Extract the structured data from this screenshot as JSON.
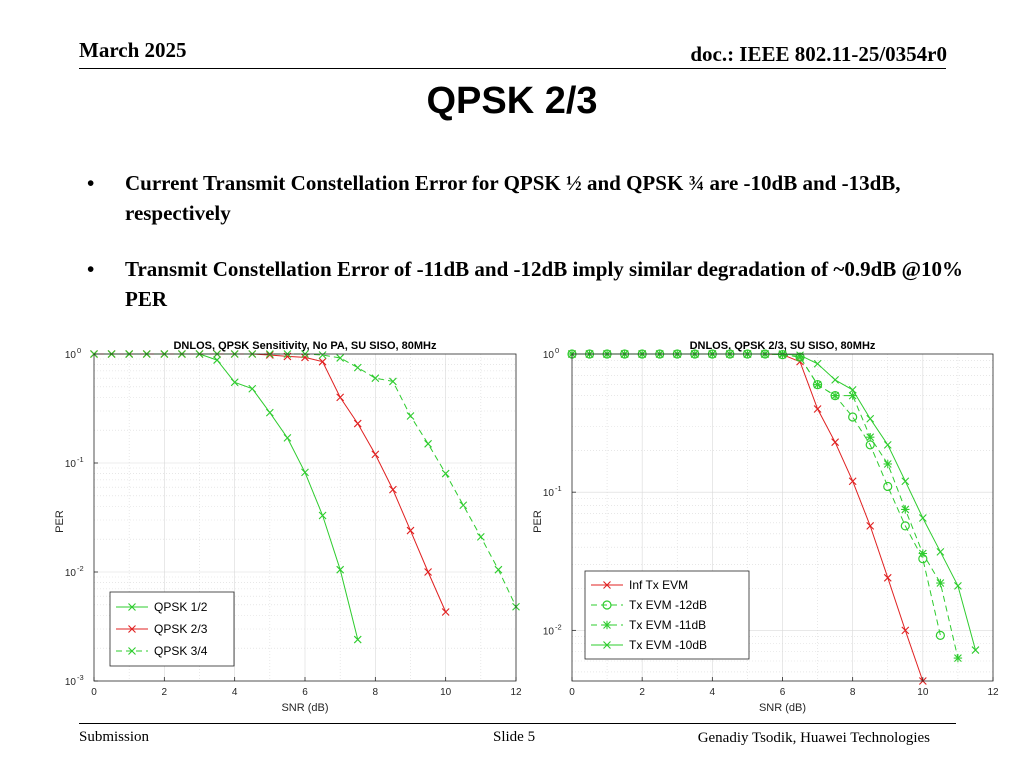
{
  "header": {
    "date": "March 2025",
    "doc": "doc.: IEEE 802.11-25/0354r0"
  },
  "title": "QPSK 2/3",
  "bullets": [
    "Current Transmit Constellation Error for QPSK ½ and QPSK ¾ are -10dB and -13dB, respectively",
    "Transmit Constellation Error of -11dB and -12dB imply similar degradation of ~0.9dB @10% PER"
  ],
  "bullet_symbol": "•",
  "footer": {
    "left": "Submission",
    "center": "Slide 5",
    "right": "Genadiy Tsodik, Huawei Technologies"
  },
  "colors": {
    "red": "#e02020",
    "green": "#2ecc2e",
    "grid": "#d9d9d9"
  },
  "chart_data": [
    {
      "type": "line",
      "title": "DNLOS, QPSK Sensitivity, No PA, SU SISO, 80MHz",
      "xlabel": "SNR (dB)",
      "ylabel": "PER",
      "yscale": "log",
      "xlim": [
        0,
        12
      ],
      "ylim": [
        0.001,
        1
      ],
      "xticks": [
        "0",
        "2",
        "4",
        "6",
        "8",
        "10",
        "12"
      ],
      "yticks": [
        {
          "base": "10",
          "exp": "0"
        },
        {
          "base": "10",
          "exp": "-1"
        },
        {
          "base": "10",
          "exp": "-2"
        },
        {
          "base": "10",
          "exp": "-3"
        }
      ],
      "grid": true,
      "legend_position": "bottom-left",
      "series": [
        {
          "name": "QPSK 1/2",
          "color": "#2ecc2e",
          "dash": "solid",
          "marker": "x",
          "x": [
            0,
            0.5,
            1,
            1.5,
            2,
            2.5,
            3,
            3.5,
            4,
            4.5,
            5,
            5.5,
            6,
            6.5,
            7,
            7.5
          ],
          "y": [
            1,
            1,
            1,
            1,
            1,
            1,
            1,
            0.88,
            0.55,
            0.48,
            0.29,
            0.17,
            0.082,
            0.033,
            0.0105,
            0.0024
          ]
        },
        {
          "name": "QPSK 2/3",
          "color": "#e02020",
          "dash": "solid",
          "marker": "x",
          "x": [
            0,
            0.5,
            1,
            1.5,
            2,
            2.5,
            3,
            3.5,
            4,
            4.5,
            5,
            5.5,
            6,
            6.5,
            7,
            7.5,
            8,
            8.5,
            9,
            9.5,
            10
          ],
          "y": [
            1,
            1,
            1,
            1,
            1,
            1,
            1,
            1,
            1,
            1,
            0.98,
            0.95,
            0.93,
            0.85,
            0.4,
            0.23,
            0.12,
            0.057,
            0.024,
            0.01,
            0.0043
          ]
        },
        {
          "name": "QPSK 3/4",
          "color": "#2ecc2e",
          "dash": "dashed",
          "marker": "x",
          "x": [
            0,
            0.5,
            1,
            1.5,
            2,
            2.5,
            3,
            3.5,
            4,
            4.5,
            5,
            5.5,
            6,
            6.5,
            7,
            7.5,
            8,
            8.5,
            9,
            9.5,
            10,
            10.5,
            11,
            11.5,
            12
          ],
          "y": [
            1,
            1,
            1,
            1,
            1,
            1,
            1,
            1,
            1,
            1,
            1,
            1,
            1,
            0.98,
            0.92,
            0.75,
            0.6,
            0.56,
            0.27,
            0.15,
            0.08,
            0.041,
            0.021,
            0.0105,
            0.0048
          ]
        }
      ]
    },
    {
      "type": "line",
      "title": "DNLOS, QPSK 2/3, SU SISO, 80MHz",
      "xlabel": "SNR (dB)",
      "ylabel": "PER",
      "yscale": "log",
      "xlim": [
        0,
        12
      ],
      "ylim": [
        0.0043,
        1
      ],
      "xticks": [
        "0",
        "2",
        "4",
        "6",
        "8",
        "10",
        "12"
      ],
      "yticks": [
        {
          "base": "10",
          "exp": "0"
        },
        {
          "base": "10",
          "exp": "-1"
        },
        {
          "base": "10",
          "exp": "-2"
        }
      ],
      "grid": true,
      "legend_position": "bottom-left",
      "series": [
        {
          "name": "Inf Tx EVM",
          "color": "#e02020",
          "dash": "solid",
          "marker": "x",
          "x": [
            0,
            0.5,
            1,
            1.5,
            2,
            2.5,
            3,
            3.5,
            4,
            4.5,
            5,
            5.5,
            6,
            6.5,
            7,
            7.5,
            8,
            8.5,
            9,
            9.5,
            10
          ],
          "y": [
            1,
            1,
            1,
            1,
            1,
            1,
            1,
            1,
            1,
            1,
            1,
            1,
            0.99,
            0.88,
            0.4,
            0.23,
            0.12,
            0.057,
            0.024,
            0.01,
            0.0043
          ]
        },
        {
          "name": "Tx EVM -12dB",
          "color": "#2ecc2e",
          "dash": "dashed",
          "marker": "o",
          "x": [
            0,
            0.5,
            1,
            1.5,
            2,
            2.5,
            3,
            3.5,
            4,
            4.5,
            5,
            5.5,
            6,
            6.5,
            7,
            7.5,
            8,
            8.5,
            9,
            9.5,
            10,
            10.5
          ],
          "y": [
            1,
            1,
            1,
            1,
            1,
            1,
            1,
            1,
            1,
            1,
            1,
            1,
            0.99,
            0.95,
            0.6,
            0.5,
            0.35,
            0.22,
            0.11,
            0.057,
            0.033,
            0.0092
          ]
        },
        {
          "name": "Tx EVM -11dB",
          "color": "#2ecc2e",
          "dash": "dashed",
          "marker": "*",
          "x": [
            0,
            0.5,
            1,
            1.5,
            2,
            2.5,
            3,
            3.5,
            4,
            4.5,
            5,
            5.5,
            6,
            6.5,
            7,
            7.5,
            8,
            8.5,
            9,
            9.5,
            10,
            10.5,
            11
          ],
          "y": [
            1,
            1,
            1,
            1,
            1,
            1,
            1,
            1,
            1,
            1,
            1,
            1,
            0.99,
            0.95,
            0.6,
            0.5,
            0.5,
            0.25,
            0.16,
            0.075,
            0.036,
            0.022,
            0.0063
          ]
        },
        {
          "name": "Tx EVM -10dB",
          "color": "#2ecc2e",
          "dash": "solid",
          "marker": "x",
          "x": [
            0,
            0.5,
            1,
            1.5,
            2,
            2.5,
            3,
            3.5,
            4,
            4.5,
            5,
            5.5,
            6,
            6.5,
            7,
            7.5,
            8,
            8.5,
            9,
            9.5,
            10,
            10.5,
            11,
            11.5
          ],
          "y": [
            1,
            1,
            1,
            1,
            1,
            1,
            1,
            1,
            1,
            1,
            1,
            1,
            1,
            0.98,
            0.85,
            0.65,
            0.55,
            0.34,
            0.22,
            0.12,
            0.065,
            0.037,
            0.021,
            0.0072
          ]
        }
      ]
    }
  ]
}
